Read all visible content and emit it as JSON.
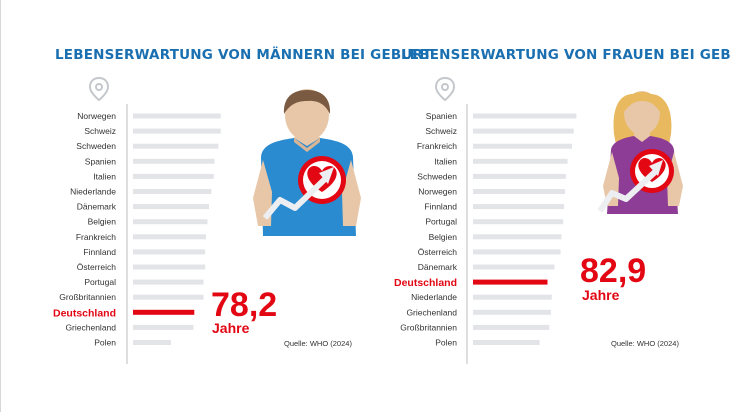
{
  "colors": {
    "bar": "#e2e4e8",
    "highlight": "#e30613",
    "title": "#1a6fb0",
    "axis": "#b9bcc2"
  },
  "chart_data": [
    {
      "type": "bar",
      "orientation": "horizontal",
      "title": "LEBENSERWARTUNG VON MÄNNERN BEI GEBURT",
      "categories": [
        "Norwegen",
        "Schweiz",
        "Schweden",
        "Spanien",
        "Italien",
        "Niederlande",
        "Dänemark",
        "Belgien",
        "Frankreich",
        "Finnland",
        "Österreich",
        "Portugal",
        "Großbritannien",
        "Deutschland",
        "Griechenland",
        "Polen"
      ],
      "values": [
        81.6,
        81.6,
        81.3,
        80.8,
        80.7,
        80.4,
        80.1,
        79.9,
        79.7,
        79.6,
        79.6,
        79.4,
        79.4,
        78.2,
        78.1,
        75.2
      ],
      "highlight": {
        "category": "Deutschland",
        "value_text": "78,2",
        "unit": "Jahre"
      },
      "source": "Quelle: WHO (2024)",
      "icons": [
        "location-pin-icon",
        "man-avatar-icon",
        "heart-arrow-icon"
      ]
    },
    {
      "type": "bar",
      "orientation": "horizontal",
      "title": "LEBENSERWARTUNG VON FRAUEN BEI GEBURT",
      "categories": [
        "Spanien",
        "Schweiz",
        "Frankreich",
        "Italien",
        "Schweden",
        "Norwegen",
        "Finnland",
        "Portugal",
        "Belgien",
        "Österreich",
        "Dänemark",
        "Deutschland",
        "Niederlande",
        "Griechenland",
        "Großbritannien",
        "Polen"
      ],
      "values": [
        86.2,
        85.9,
        85.7,
        85.2,
        85.0,
        84.9,
        84.8,
        84.7,
        84.5,
        84.4,
        83.7,
        82.9,
        83.4,
        83.3,
        83.1,
        82.0
      ],
      "highlight": {
        "category": "Deutschland",
        "value_text": "82,9",
        "unit": "Jahre"
      },
      "source": "Quelle: WHO (2024)",
      "icons": [
        "location-pin-icon",
        "woman-avatar-icon",
        "heart-arrow-icon"
      ]
    }
  ]
}
